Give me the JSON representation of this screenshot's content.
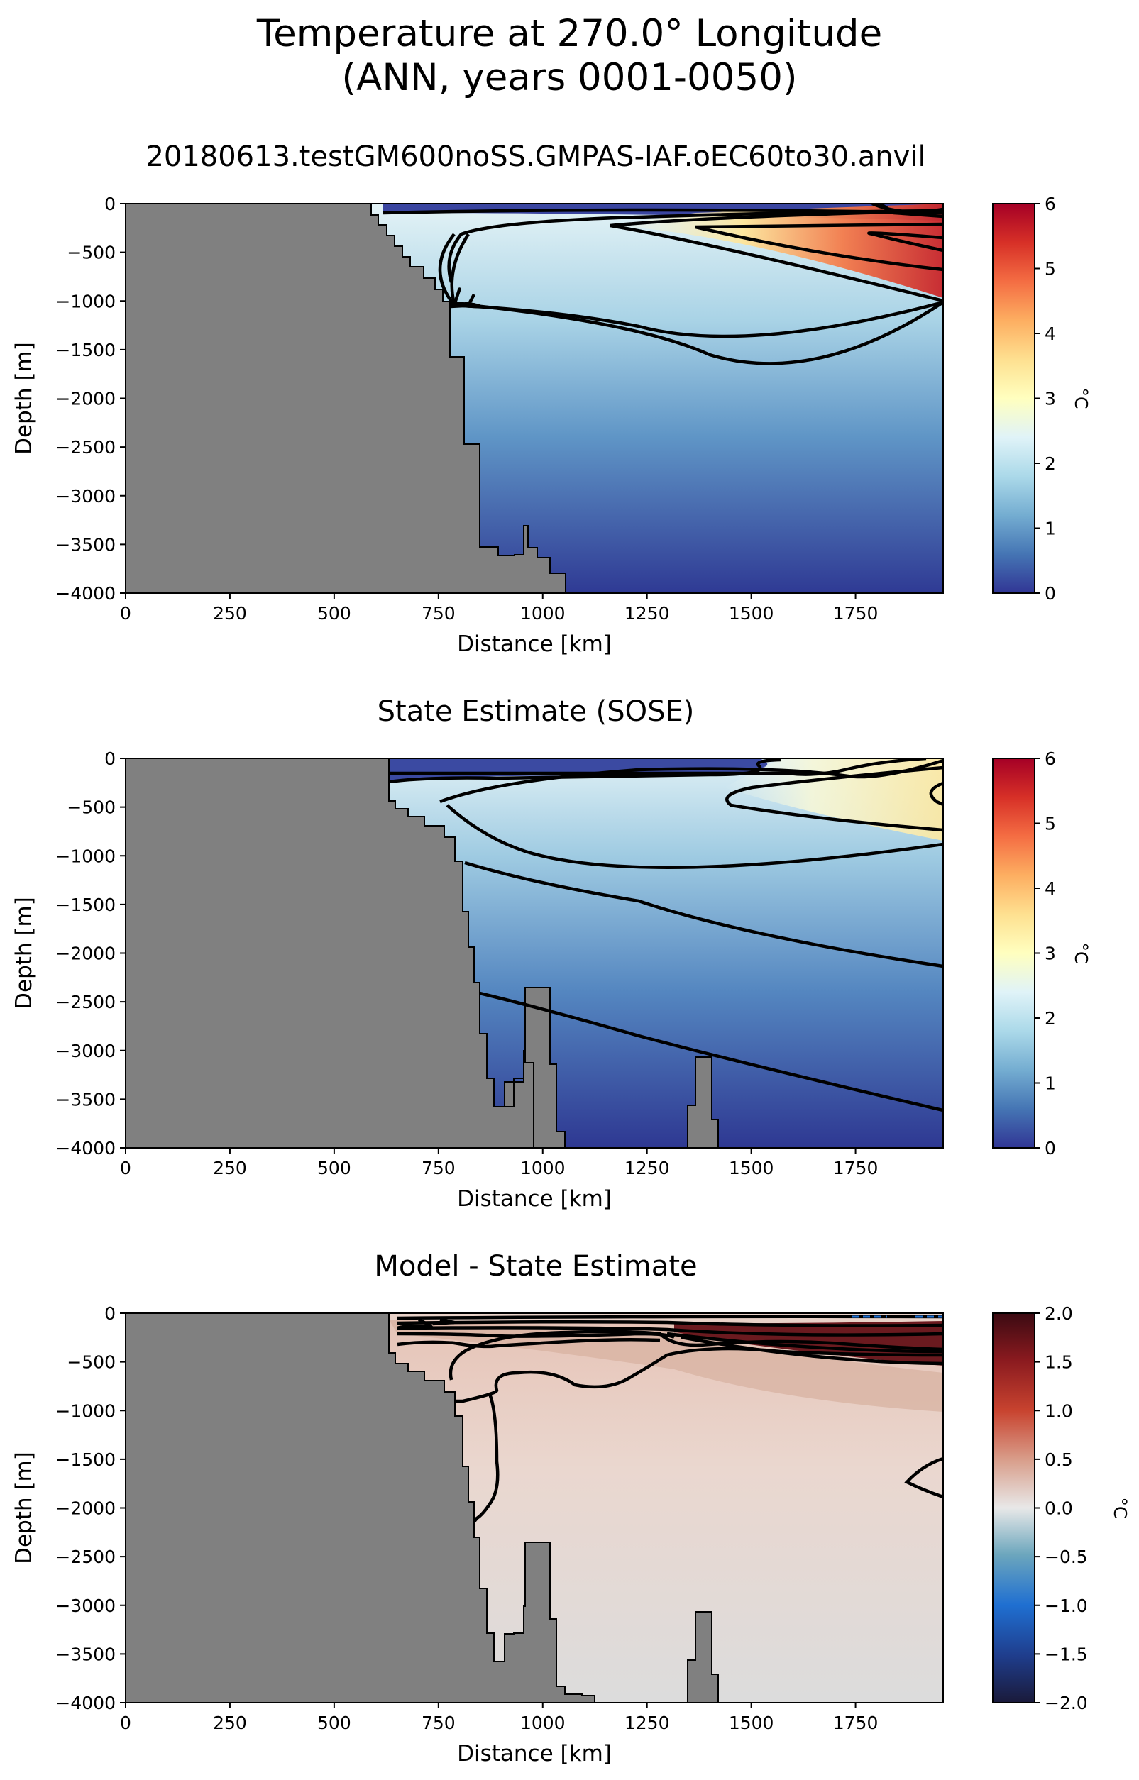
{
  "figure": {
    "title_line1": "Temperature at 270.0° Longitude",
    "title_line2": "(ANN, years 0001-0050)"
  },
  "chart_data": [
    {
      "type": "heatmap",
      "title": "20180613.testGM600noSS.GMPAS-IAF.oEC60to30.anvil",
      "xlabel": "Distance [km]",
      "ylabel": "Depth [m]",
      "xlim": [
        0,
        1960
      ],
      "ylim": [
        -4000,
        0
      ],
      "xticks": [
        "0",
        "250",
        "500",
        "750",
        "1000",
        "1250",
        "1500",
        "1750"
      ],
      "yticks": [
        "0",
        "−500",
        "−1000",
        "−1500",
        "−2000",
        "−2500",
        "−3000",
        "−3500",
        "−4000"
      ],
      "colorbar": {
        "label": "°C",
        "range": [
          0,
          6
        ],
        "ticks": [
          "0",
          "1",
          "2",
          "3",
          "4",
          "5",
          "6"
        ],
        "colormap": "RdYlBu_r"
      },
      "contour_levels": [
        0,
        1,
        2,
        3,
        4,
        5
      ]
    },
    {
      "type": "heatmap",
      "title": "State Estimate (SOSE)",
      "xlabel": "Distance [km]",
      "ylabel": "Depth [m]",
      "xlim": [
        0,
        1960
      ],
      "ylim": [
        -4000,
        0
      ],
      "xticks": [
        "0",
        "250",
        "500",
        "750",
        "1000",
        "1250",
        "1500",
        "1750"
      ],
      "yticks": [
        "0",
        "−500",
        "−1000",
        "−1500",
        "−2000",
        "−2500",
        "−3000",
        "−3500",
        "−4000"
      ],
      "colorbar": {
        "label": "°C",
        "range": [
          0,
          6
        ],
        "ticks": [
          "0",
          "1",
          "2",
          "3",
          "4",
          "5",
          "6"
        ],
        "colormap": "RdYlBu_r"
      },
      "contour_levels": [
        0,
        1,
        2,
        3
      ]
    },
    {
      "type": "heatmap",
      "title": "Model - State Estimate",
      "xlabel": "Distance [km]",
      "ylabel": "Depth [m]",
      "xlim": [
        0,
        1960
      ],
      "ylim": [
        -4000,
        0
      ],
      "xticks": [
        "0",
        "250",
        "500",
        "750",
        "1000",
        "1250",
        "1500",
        "1750"
      ],
      "yticks": [
        "0",
        "−500",
        "−1000",
        "−1500",
        "−2000",
        "−2500",
        "−3000",
        "−3500",
        "−4000"
      ],
      "colorbar": {
        "label": "°C",
        "range": [
          -2,
          2
        ],
        "ticks": [
          "−2.0",
          "−1.5",
          "−1.0",
          "−0.5",
          "0.0",
          "0.5",
          "1.0",
          "1.5",
          "2.0"
        ],
        "colormap": "RdBu_r"
      },
      "contour_levels": [
        -0.5,
        0,
        0.5
      ]
    }
  ]
}
